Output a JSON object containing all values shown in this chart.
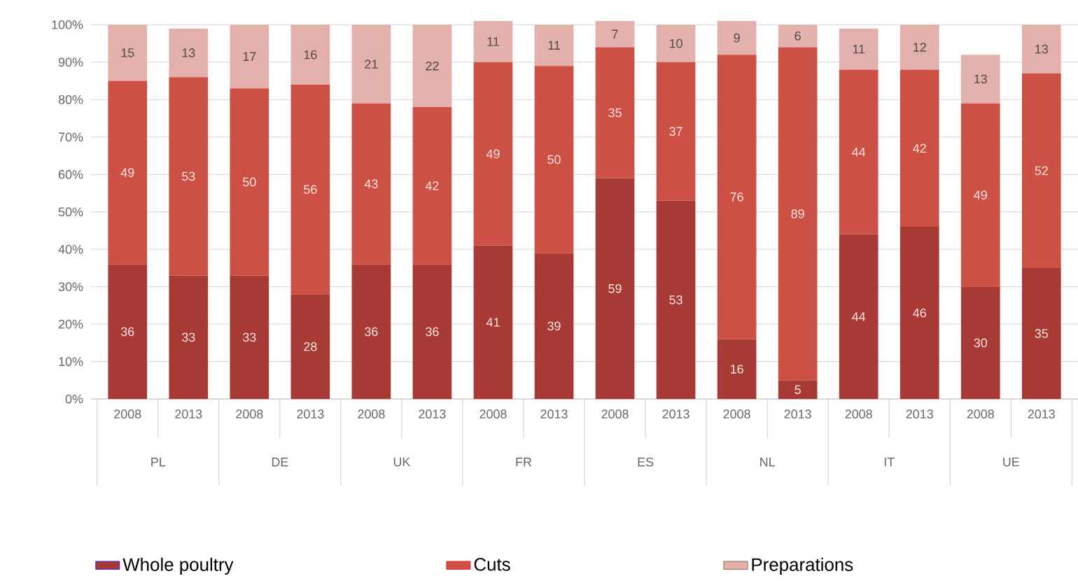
{
  "chart_data": {
    "type": "bar",
    "stacked": true,
    "categories": [
      "2008",
      "2013",
      "2008",
      "2013",
      "2008",
      "2013",
      "2008",
      "2013",
      "2008",
      "2013",
      "2008",
      "2013",
      "2008",
      "2013",
      "2008",
      "2013"
    ],
    "series": [
      {
        "name": "Whole poultry",
        "color": "#a83a35",
        "values": [
          36,
          33,
          33,
          28,
          36,
          36,
          41,
          39,
          59,
          53,
          16,
          5,
          44,
          46,
          30,
          35
        ]
      },
      {
        "name": "Cuts",
        "color": "#cc5044",
        "values": [
          49,
          53,
          50,
          56,
          43,
          42,
          49,
          50,
          35,
          37,
          76,
          89,
          44,
          42,
          49,
          52
        ]
      },
      {
        "name": "Preparations",
        "color": "#e4b0ab",
        "values": [
          15,
          13,
          17,
          16,
          21,
          22,
          11,
          11,
          7,
          10,
          9,
          6,
          11,
          12,
          13,
          13
        ]
      }
    ],
    "annotations": [
      "PL",
      "DE",
      "UK",
      "FR",
      "ES",
      "NL",
      "IT",
      "UE"
    ],
    "ylim": [
      0,
      101
    ],
    "yticks": [
      {
        "value": 0,
        "label": "0%"
      },
      {
        "value": 10,
        "label": "10%"
      },
      {
        "value": 20,
        "label": "20%"
      },
      {
        "value": 30,
        "label": "30%"
      },
      {
        "value": 40,
        "label": "40%"
      },
      {
        "value": 50,
        "label": "50%"
      },
      {
        "value": 60,
        "label": "60%"
      },
      {
        "value": 70,
        "label": "70%"
      },
      {
        "value": 80,
        "label": "80%"
      },
      {
        "value": 90,
        "label": "90%"
      },
      {
        "value": 100,
        "label": "100%"
      }
    ],
    "grid": "y",
    "legend": "bottom",
    "data_labels": true
  }
}
